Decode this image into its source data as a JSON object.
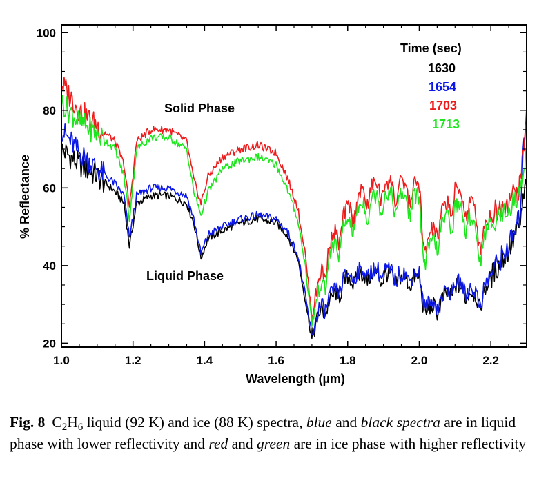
{
  "chart_data": {
    "type": "line",
    "xlabel": "Wavelength (µm)",
    "ylabel": "% Reflectance",
    "xlim": [
      1.0,
      2.3
    ],
    "ylim": [
      19,
      102
    ],
    "x_ticks": [
      "1.0",
      "1.2",
      "1.4",
      "1.6",
      "1.8",
      "2.0",
      "2.2"
    ],
    "y_ticks": [
      "20",
      "40",
      "60",
      "80",
      "100"
    ],
    "legend_title": "Time (sec)",
    "legend_position": "top-right",
    "annotations": {
      "solid": "Solid Phase",
      "liquid": "Liquid Phase"
    },
    "series": [
      {
        "name": "1630",
        "color": "#000000",
        "x": [
          1.0,
          1.05,
          1.1,
          1.15,
          1.175,
          1.19,
          1.21,
          1.25,
          1.3,
          1.35,
          1.37,
          1.39,
          1.41,
          1.45,
          1.5,
          1.55,
          1.6,
          1.63,
          1.66,
          1.68,
          1.7,
          1.72,
          1.75,
          1.8,
          1.85,
          1.9,
          1.95,
          2.0,
          2.01,
          2.02,
          2.05,
          2.1,
          2.15,
          2.17,
          2.2,
          2.25,
          2.28,
          2.3
        ],
        "y": [
          70,
          66,
          63,
          59,
          56,
          45,
          56,
          58,
          58,
          56,
          51,
          42,
          47,
          49,
          51,
          52,
          51,
          48,
          42,
          32,
          21,
          28,
          31,
          37,
          38,
          38,
          37,
          37,
          32,
          29,
          30,
          35,
          33,
          31,
          37,
          44,
          50,
          62
        ]
      },
      {
        "name": "1654",
        "color": "#0a17e6",
        "x": [
          1.0,
          1.05,
          1.1,
          1.15,
          1.175,
          1.19,
          1.21,
          1.25,
          1.3,
          1.35,
          1.37,
          1.39,
          1.41,
          1.45,
          1.5,
          1.55,
          1.6,
          1.63,
          1.66,
          1.68,
          1.7,
          1.72,
          1.75,
          1.8,
          1.85,
          1.9,
          1.95,
          2.0,
          2.01,
          2.02,
          2.05,
          2.1,
          2.15,
          2.17,
          2.2,
          2.25,
          2.28,
          2.3
        ],
        "y": [
          75,
          69,
          65,
          61,
          58,
          47,
          58,
          60,
          60,
          58,
          52,
          43,
          48,
          50,
          52,
          53,
          52,
          49,
          43,
          33,
          22,
          29,
          32,
          38,
          39,
          39,
          38,
          38,
          33,
          30,
          31,
          36,
          34,
          32,
          38,
          45,
          52,
          82
        ]
      },
      {
        "name": "1703",
        "color": "#ee1c1c",
        "x": [
          1.0,
          1.05,
          1.1,
          1.15,
          1.175,
          1.19,
          1.21,
          1.25,
          1.3,
          1.35,
          1.37,
          1.39,
          1.41,
          1.45,
          1.5,
          1.55,
          1.6,
          1.63,
          1.66,
          1.68,
          1.7,
          1.72,
          1.75,
          1.8,
          1.85,
          1.9,
          1.95,
          2.0,
          2.01,
          2.02,
          2.05,
          2.1,
          2.15,
          2.17,
          2.2,
          2.25,
          2.28,
          2.3
        ],
        "y": [
          87,
          80,
          76,
          72,
          66,
          55,
          72,
          75,
          75,
          72,
          62,
          56,
          63,
          68,
          70,
          71,
          69,
          63,
          55,
          44,
          27,
          37,
          46,
          55,
          60,
          62,
          61,
          61,
          50,
          46,
          52,
          60,
          56,
          49,
          53,
          57,
          60,
          77
        ]
      },
      {
        "name": "1713",
        "color": "#1ee61e",
        "x": [
          1.0,
          1.05,
          1.1,
          1.15,
          1.175,
          1.19,
          1.21,
          1.25,
          1.3,
          1.35,
          1.37,
          1.39,
          1.41,
          1.45,
          1.5,
          1.55,
          1.6,
          1.63,
          1.66,
          1.68,
          1.7,
          1.72,
          1.75,
          1.8,
          1.85,
          1.9,
          1.95,
          2.0,
          2.01,
          2.02,
          2.05,
          2.1,
          2.15,
          2.17,
          2.2,
          2.25,
          2.28,
          2.3
        ],
        "y": [
          82,
          77,
          74,
          70,
          63,
          52,
          70,
          73,
          73,
          70,
          59,
          53,
          59,
          65,
          67,
          68,
          66,
          60,
          52,
          41,
          25,
          34,
          43,
          52,
          57,
          59,
          58,
          58,
          47,
          43,
          49,
          56,
          52,
          46,
          51,
          55,
          58,
          70
        ]
      }
    ]
  },
  "caption": {
    "label": "Fig. 8",
    "part1": "C",
    "sub1": "2",
    "part2": "H",
    "sub2": "6",
    "part3": " liquid (92 K) and ice (88 K) spectra, ",
    "ital1": "blue",
    "part4": " and ",
    "ital2": "black spectra",
    "part5": " are in liquid phase with lower reflectivity and ",
    "ital3": "red",
    "part6": " and ",
    "ital4": "green",
    "part7": " are in ice phase with higher reflectivity"
  }
}
